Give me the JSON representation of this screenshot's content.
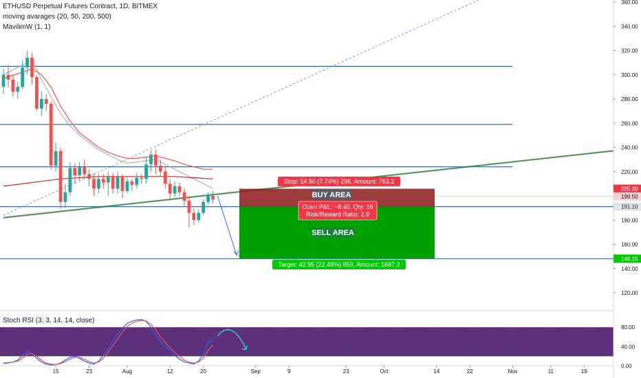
{
  "legend": {
    "title": "ETHUSD Perpetual Futures Contract, 1D, BITMEX",
    "ma": "moving avarages (20, 50, 200, 500)",
    "mavilim": "MavilimW (1, 1)",
    "rsi": "Stoch RSI (3, 3, 14, 14, close)"
  },
  "colors": {
    "up": "#26a69a",
    "down": "#ef5350",
    "hline": "#1e5ba8",
    "trend_green": "#2e7d32",
    "trend_blue": "#2962ff",
    "stop": "#f23645",
    "target": "#00c800",
    "rsi_bg": "#4a1a6b"
  },
  "chart_data": {
    "type": "candlestick",
    "y_axis": {
      "min": 110,
      "max": 360,
      "ticks": [
        "360.00",
        "340.00",
        "320.00",
        "300.00",
        "280.00",
        "260.00",
        "240.00",
        "220.00",
        "200.00",
        "180.00",
        "160.00",
        "140.00",
        "120.00"
      ],
      "tick_values": [
        360,
        340,
        320,
        300,
        280,
        260,
        240,
        220,
        200,
        180,
        160,
        140,
        120
      ]
    },
    "x_axis": {
      "ticks": [
        "15",
        "23",
        "Aug",
        "12",
        "20",
        "Sep",
        "9",
        "23",
        "Oct",
        "14",
        "22",
        "Nov",
        "11",
        "19"
      ],
      "tick_index": [
        11,
        18,
        26,
        35,
        42,
        53,
        60,
        72,
        80,
        91,
        98,
        107,
        115,
        122
      ]
    },
    "price_badges": [
      {
        "label": "205.90",
        "value": 205.9,
        "color": "#f23645"
      },
      {
        "label": "199.50",
        "value": 199.5,
        "color": "#f8d0d0"
      },
      {
        "label": "191.10",
        "value": 191.1,
        "color": "#e0e3eb"
      },
      {
        "label": "148.15",
        "value": 148.15,
        "color": "#00c800"
      }
    ],
    "horizontal_lines": [
      307,
      259,
      224,
      191.1,
      148.15
    ],
    "candles": [
      {
        "o": 290,
        "c": 300,
        "h": 305,
        "l": 284
      },
      {
        "o": 300,
        "c": 296,
        "h": 308,
        "l": 290
      },
      {
        "o": 296,
        "c": 286,
        "h": 300,
        "l": 282
      },
      {
        "o": 286,
        "c": 290,
        "h": 294,
        "l": 280
      },
      {
        "o": 290,
        "c": 306,
        "h": 312,
        "l": 288
      },
      {
        "o": 306,
        "c": 314,
        "h": 320,
        "l": 300
      },
      {
        "o": 314,
        "c": 298,
        "h": 318,
        "l": 292
      },
      {
        "o": 298,
        "c": 272,
        "h": 300,
        "l": 270
      },
      {
        "o": 272,
        "c": 280,
        "h": 286,
        "l": 266
      },
      {
        "o": 280,
        "c": 276,
        "h": 284,
        "l": 270
      },
      {
        "o": 276,
        "c": 225,
        "h": 278,
        "l": 222
      },
      {
        "o": 225,
        "c": 237,
        "h": 244,
        "l": 220
      },
      {
        "o": 237,
        "c": 195,
        "h": 240,
        "l": 189
      },
      {
        "o": 195,
        "c": 203,
        "h": 210,
        "l": 190
      },
      {
        "o": 203,
        "c": 223,
        "h": 228,
        "l": 200
      },
      {
        "o": 223,
        "c": 217,
        "h": 227,
        "l": 210
      },
      {
        "o": 217,
        "c": 224,
        "h": 228,
        "l": 212
      },
      {
        "o": 224,
        "c": 218,
        "h": 230,
        "l": 214
      },
      {
        "o": 218,
        "c": 214,
        "h": 222,
        "l": 208
      },
      {
        "o": 214,
        "c": 206,
        "h": 218,
        "l": 200
      },
      {
        "o": 206,
        "c": 214,
        "h": 218,
        "l": 202
      },
      {
        "o": 214,
        "c": 211,
        "h": 218,
        "l": 206
      },
      {
        "o": 211,
        "c": 216,
        "h": 220,
        "l": 200
      },
      {
        "o": 216,
        "c": 206,
        "h": 219,
        "l": 202
      },
      {
        "o": 206,
        "c": 216,
        "h": 220,
        "l": 202
      },
      {
        "o": 216,
        "c": 204,
        "h": 218,
        "l": 198
      },
      {
        "o": 204,
        "c": 212,
        "h": 216,
        "l": 202
      },
      {
        "o": 212,
        "c": 209,
        "h": 214,
        "l": 204
      },
      {
        "o": 209,
        "c": 215,
        "h": 219,
        "l": 206
      },
      {
        "o": 215,
        "c": 214,
        "h": 218,
        "l": 210
      },
      {
        "o": 214,
        "c": 226,
        "h": 232,
        "l": 210
      },
      {
        "o": 226,
        "c": 234,
        "h": 238,
        "l": 220
      },
      {
        "o": 234,
        "c": 225,
        "h": 238,
        "l": 218
      },
      {
        "o": 225,
        "c": 220,
        "h": 230,
        "l": 216
      },
      {
        "o": 220,
        "c": 210,
        "h": 224,
        "l": 206
      },
      {
        "o": 210,
        "c": 202,
        "h": 214,
        "l": 196
      },
      {
        "o": 202,
        "c": 208,
        "h": 212,
        "l": 199
      },
      {
        "o": 208,
        "c": 203,
        "h": 211,
        "l": 200
      },
      {
        "o": 203,
        "c": 196,
        "h": 206,
        "l": 192
      },
      {
        "o": 196,
        "c": 186,
        "h": 200,
        "l": 174
      },
      {
        "o": 186,
        "c": 180,
        "h": 190,
        "l": 176
      },
      {
        "o": 180,
        "c": 186,
        "h": 189,
        "l": 178
      },
      {
        "o": 186,
        "c": 195,
        "h": 197,
        "l": 184
      },
      {
        "o": 195,
        "c": 200,
        "h": 203,
        "l": 193
      },
      {
        "o": 200,
        "c": 197,
        "h": 204,
        "l": 194
      }
    ],
    "mas": [
      {
        "color": "#b0b0b0",
        "points": [
          [
            0,
            300
          ],
          [
            6,
            312
          ],
          [
            8,
            296
          ],
          [
            10,
            282
          ],
          [
            12,
            268
          ],
          [
            14,
            258
          ],
          [
            16,
            250
          ],
          [
            18,
            244
          ],
          [
            20,
            238
          ],
          [
            22,
            234
          ],
          [
            24,
            230
          ],
          [
            26,
            227
          ],
          [
            28,
            228
          ],
          [
            30,
            229
          ],
          [
            32,
            230
          ],
          [
            34,
            226
          ],
          [
            36,
            222
          ],
          [
            38,
            218
          ],
          [
            40,
            214
          ],
          [
            42,
            210
          ],
          [
            44,
            206
          ]
        ]
      },
      {
        "color": "#ef5350",
        "points": [
          [
            0,
            297
          ],
          [
            4,
            302
          ],
          [
            6,
            305
          ],
          [
            8,
            300
          ],
          [
            10,
            290
          ],
          [
            12,
            274
          ],
          [
            14,
            262
          ],
          [
            16,
            252
          ],
          [
            18,
            246
          ],
          [
            20,
            240
          ],
          [
            22,
            236
          ],
          [
            24,
            233
          ],
          [
            26,
            231
          ],
          [
            28,
            231
          ],
          [
            30,
            232
          ],
          [
            32,
            233
          ],
          [
            34,
            231
          ],
          [
            36,
            229
          ],
          [
            38,
            226
          ],
          [
            40,
            224
          ],
          [
            42,
            222
          ],
          [
            44,
            222
          ]
        ]
      },
      {
        "color": "#c62828",
        "points": [
          [
            0,
            208
          ],
          [
            4,
            210
          ],
          [
            8,
            212
          ],
          [
            12,
            214
          ],
          [
            16,
            215
          ],
          [
            20,
            216
          ],
          [
            24,
            216
          ],
          [
            28,
            216
          ],
          [
            32,
            216
          ],
          [
            36,
            216
          ],
          [
            40,
            215
          ],
          [
            44,
            214
          ]
        ]
      }
    ],
    "trend_lines": [
      {
        "color": "#2e7d32",
        "x1": 0,
        "y1": 182,
        "x2": 130,
        "y2": 238,
        "style": "solid"
      },
      {
        "color": "#2962ff",
        "x1": 0,
        "y1": 184,
        "x2": 100,
        "y2": 362,
        "style": "dashed"
      }
    ],
    "projection_arrow": {
      "x1": 45,
      "y1": 200,
      "x2": 49,
      "y2": 151
    },
    "position": {
      "buy_area": "BUY AREA",
      "sell_area": "SELL AREA",
      "entry": 191.1,
      "stop": 205.9,
      "target": 148.15,
      "stop_label": "Stop: 14.80 (7.74%) 296, Amount: 763.2",
      "target_label": "Target: 42.95 (22.48%) 859, Amount: 1687.2",
      "pnl_label_1": "Open P&L: −8.40, Qty: 16",
      "pnl_label_2": "Risk/Reward Ratio: 2.9"
    },
    "rsi": {
      "y_ticks": [
        "80.00",
        "40.00",
        "0.00"
      ],
      "tick_values": [
        80,
        40,
        0
      ],
      "min": -5,
      "max": 100,
      "upper": 80,
      "lower": 20,
      "k": [
        5,
        6,
        8,
        12,
        22,
        30,
        26,
        16,
        8,
        4,
        2,
        3,
        6,
        12,
        18,
        20,
        16,
        10,
        6,
        4,
        10,
        22,
        36,
        52,
        66,
        78,
        88,
        92,
        95,
        96,
        92,
        80,
        64,
        50,
        40,
        32,
        22,
        14,
        8,
        6,
        4,
        10,
        24,
        48,
        56
      ],
      "d": [
        6,
        7,
        8,
        10,
        16,
        24,
        26,
        20,
        12,
        6,
        4,
        3,
        5,
        9,
        14,
        18,
        18,
        14,
        9,
        6,
        8,
        16,
        28,
        42,
        56,
        70,
        82,
        88,
        92,
        94,
        93,
        86,
        74,
        60,
        48,
        38,
        28,
        20,
        12,
        8,
        6,
        8,
        16,
        32,
        44
      ],
      "arc_start": [
        45,
        62
      ],
      "arc_end": [
        51,
        34
      ]
    }
  }
}
